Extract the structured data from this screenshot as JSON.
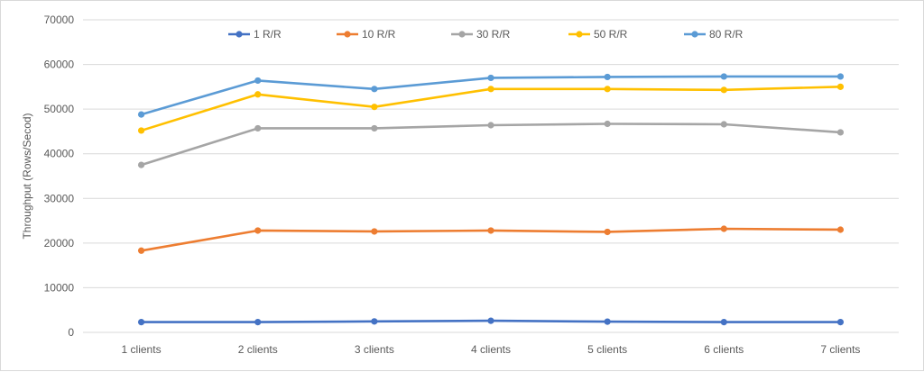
{
  "chart_data": {
    "type": "line",
    "title": "",
    "xlabel": "",
    "ylabel": "Throughput (Rows/Secod)",
    "categories": [
      "1 clients",
      "2 clients",
      "3 clients",
      "4 clients",
      "5 clients",
      "6 clients",
      "7 clients"
    ],
    "ylim": [
      0,
      70000
    ],
    "yticks": [
      "0",
      "10000",
      "20000",
      "30000",
      "40000",
      "50000",
      "60000",
      "70000"
    ],
    "grid": "horizontal",
    "legend_position": "top",
    "series": [
      {
        "name": "1 R/R",
        "color": "#4472c4",
        "values": [
          2300,
          2300,
          2450,
          2600,
          2400,
          2300,
          2300
        ]
      },
      {
        "name": "10 R/R",
        "color": "#ed7d31",
        "values": [
          18300,
          22800,
          22600,
          22800,
          22500,
          23200,
          23000
        ]
      },
      {
        "name": "30 R/R",
        "color": "#a5a5a5",
        "values": [
          37500,
          45700,
          45700,
          46400,
          46700,
          46600,
          44800
        ]
      },
      {
        "name": "50 R/R",
        "color": "#ffc000",
        "values": [
          45200,
          53300,
          50500,
          54500,
          54500,
          54300,
          55000
        ]
      },
      {
        "name": "80 R/R",
        "color": "#5b9bd5",
        "values": [
          48800,
          56400,
          54500,
          57000,
          57200,
          57300,
          57300
        ]
      }
    ]
  }
}
